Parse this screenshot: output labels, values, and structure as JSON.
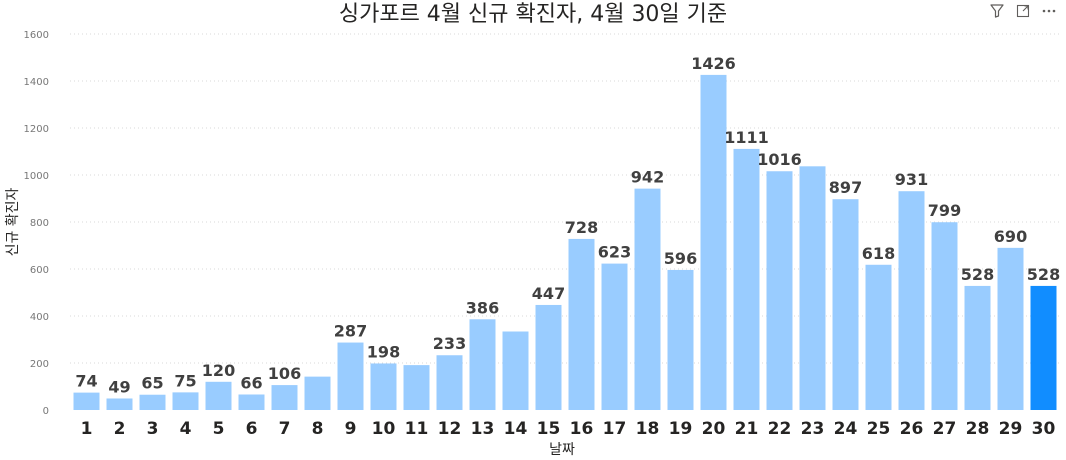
{
  "header": {
    "filter_icon": "filter-icon",
    "focus_icon": "focus-mode-icon",
    "more_icon": "more-options-icon"
  },
  "chart_data": {
    "type": "bar",
    "title": "싱가포르 4월 신규 확진자, 4월 30일 기준",
    "xlabel": "날짜",
    "ylabel": "신규 확진자",
    "categories": [
      "1",
      "2",
      "3",
      "4",
      "5",
      "6",
      "7",
      "8",
      "9",
      "10",
      "11",
      "12",
      "13",
      "14",
      "15",
      "16",
      "17",
      "18",
      "19",
      "20",
      "21",
      "22",
      "23",
      "24",
      "25",
      "26",
      "27",
      "28",
      "29",
      "30"
    ],
    "values": [
      74,
      49,
      65,
      75,
      120,
      66,
      106,
      142,
      287,
      198,
      191,
      233,
      386,
      334,
      447,
      728,
      623,
      942,
      596,
      1426,
      1111,
      1016,
      1037,
      897,
      618,
      931,
      799,
      528,
      690,
      528
    ],
    "data_labels": [
      "74",
      "49",
      "65",
      "75",
      "120",
      "66",
      "106",
      "",
      "287",
      "198",
      "",
      "233",
      "386",
      "",
      "447",
      "728",
      "623",
      "942",
      "596",
      "1426",
      "1111",
      "1016",
      "",
      "897",
      "618",
      "931",
      "799",
      "528",
      "690",
      "528"
    ],
    "yticks": [
      "0",
      "200",
      "400",
      "600",
      "800",
      "1000",
      "1200",
      "1400",
      "1600"
    ],
    "ylim": [
      0,
      1600
    ],
    "grid": true,
    "colors": {
      "bar": "#99CCFF",
      "highlight": "#118DFF"
    },
    "highlight_index": 29
  }
}
